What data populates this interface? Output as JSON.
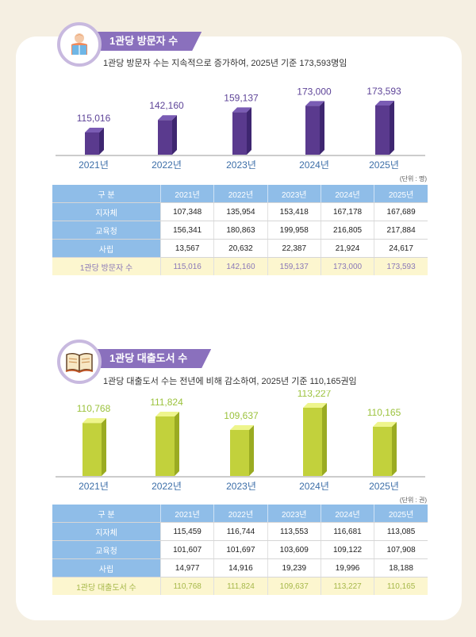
{
  "sections": [
    {
      "title": "1관당 방문자 수",
      "summary": "1관당 방문자 수는 지속적으로 증가하여, 2025년 기준 173,593명임",
      "unit": "(단위 : 명)",
      "icon": "reader-person-icon",
      "accent": "#8a70bd",
      "bar_colors": {
        "front": "#5a3a8e",
        "side": "#3e2670",
        "top": "#7a5cb4",
        "label": "#5e4498"
      },
      "table": {
        "headers": [
          "구 분",
          "2021년",
          "2022년",
          "2023년",
          "2024년",
          "2025년"
        ],
        "rows": [
          {
            "label": "지자체",
            "values": [
              "107,348",
              "135,954",
              "153,418",
              "167,178",
              "167,689"
            ]
          },
          {
            "label": "교육청",
            "values": [
              "156,341",
              "180,863",
              "199,958",
              "216,805",
              "217,884"
            ]
          },
          {
            "label": "사립",
            "values": [
              "13,567",
              "20,632",
              "22,387",
              "21,924",
              "24,617"
            ]
          }
        ],
        "total": {
          "label": "1관당 방문자 수",
          "values": [
            "115,016",
            "142,160",
            "159,137",
            "173,000",
            "173,593"
          ]
        }
      }
    },
    {
      "title": "1관당 대출도서 수",
      "summary": "1관당 대출도서 수는 전년에 비해 감소하여, 2025년 기준 110,165권임",
      "unit": "(단위 : 권)",
      "icon": "open-book-icon",
      "accent": "#8a70bd",
      "bar_colors": {
        "front": "#c2d13c",
        "side": "#9aab22",
        "top": "#eef58c",
        "label": "#9bc23c"
      },
      "table": {
        "headers": [
          "구 분",
          "2021년",
          "2022년",
          "2023년",
          "2024년",
          "2025년"
        ],
        "rows": [
          {
            "label": "지자체",
            "values": [
              "115,459",
              "116,744",
              "113,553",
              "116,681",
              "113,085"
            ]
          },
          {
            "label": "교육청",
            "values": [
              "101,607",
              "101,697",
              "103,609",
              "109,122",
              "107,908"
            ]
          },
          {
            "label": "사립",
            "values": [
              "14,977",
              "14,916",
              "19,239",
              "19,996",
              "18,188"
            ]
          }
        ],
        "total": {
          "label": "1관당 대출도서 수",
          "values": [
            "110,768",
            "111,824",
            "109,637",
            "113,227",
            "110,165"
          ]
        }
      }
    }
  ],
  "chart_data": [
    {
      "type": "bar",
      "title": "1관당 방문자 수",
      "categories": [
        "2021년",
        "2022년",
        "2023년",
        "2024년",
        "2025년"
      ],
      "values": [
        115016,
        142160,
        159137,
        173000,
        173593
      ],
      "value_labels": [
        "115,016",
        "142,160",
        "159,137",
        "173,000",
        "173,593"
      ],
      "grid": false
    },
    {
      "type": "bar",
      "title": "1관당 대출도서 수",
      "categories": [
        "2021년",
        "2022년",
        "2023년",
        "2024년",
        "2025년"
      ],
      "values": [
        110768,
        111824,
        109637,
        113227,
        110165
      ],
      "value_labels": [
        "110,768",
        "111,824",
        "109,637",
        "113,227",
        "110,165"
      ],
      "grid": false
    }
  ]
}
